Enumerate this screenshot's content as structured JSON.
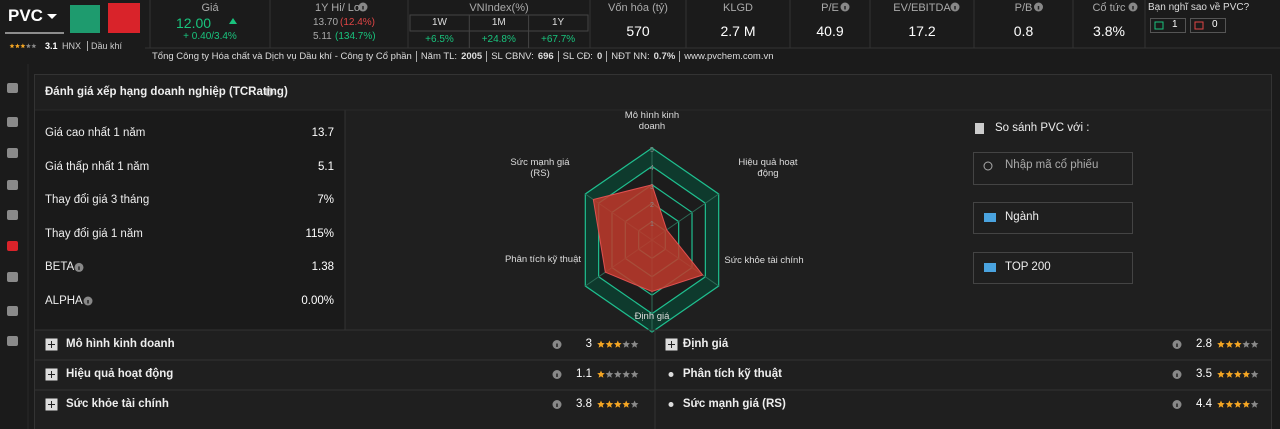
{
  "header": {
    "ticker": "PVC",
    "rating": 3.1,
    "exchange": "HNX",
    "industry": "Dầu khí",
    "price": {
      "label": "Giá",
      "value": "12.00",
      "change": "+ 0.40/3.4%"
    },
    "hilo": {
      "label": "1Y Hi/ Lo",
      "hi": "13.70",
      "hi_change": "(12.4%)",
      "lo": "5.11",
      "lo_change": "(134.7%)"
    },
    "vnindex": {
      "label": "VNIndex(%)",
      "periods": [
        "1W",
        "1M",
        "1Y"
      ],
      "values": [
        "+6.5%",
        "+24.8%",
        "+67.7%"
      ]
    },
    "metrics": [
      {
        "label": "Vốn hóa (tỷ)",
        "value": "570"
      },
      {
        "label": "KLGD",
        "value": "2.7 M"
      },
      {
        "label": "P/E",
        "value": "40.9"
      },
      {
        "label": "EV/EBITDA",
        "value": "17.2"
      },
      {
        "label": "P/B",
        "value": "0.8"
      },
      {
        "label": "Cổ tức",
        "value": "3.8%"
      }
    ],
    "sentiment": {
      "question": "Bạn nghĩ sao về PVC?",
      "up": "1",
      "down": "0"
    },
    "company": {
      "name": "Tổng Công ty Hóa chất và Dịch vụ Dầu khí - Công ty Cổ phần",
      "facts": [
        {
          "label": "Năm TL:",
          "value": "2005"
        },
        {
          "label": "SL CBNV:",
          "value": "696"
        },
        {
          "label": "SL CĐ:",
          "value": "0"
        },
        {
          "label": "NĐT NN:",
          "value": "0.7%"
        }
      ],
      "website": "www.pvchem.com.vn"
    }
  },
  "panel": {
    "title": "Đánh giá xếp hạng doanh nghiệp (TCRating)",
    "stats": [
      {
        "label": "Giá cao nhất 1 năm",
        "value": "13.7"
      },
      {
        "label": "Giá thấp nhất 1 năm",
        "value": "5.1"
      },
      {
        "label": "Thay đổi giá 3 tháng",
        "value": "7%"
      },
      {
        "label": "Thay đổi giá 1 năm",
        "value": "115%"
      },
      {
        "label": "BETA",
        "value": "1.38"
      },
      {
        "label": "ALPHA",
        "value": "0.00%"
      }
    ],
    "compare": {
      "title": "So sánh PVC với :",
      "placeholder": "Nhập mã cổ phiếu",
      "buttons": [
        "Ngành",
        "TOP 200"
      ]
    }
  },
  "chart_data": {
    "type": "radar",
    "categories": [
      "Mô hình kinh doanh",
      "Hiệu quả hoạt động",
      "Sức khỏe tài chính",
      "Định giá",
      "Phân tích kỹ thuật",
      "Sức mạnh giá (RS)"
    ],
    "values": [
      3,
      1.1,
      3.8,
      2.8,
      3.5,
      4.4
    ],
    "ylim": [
      0,
      5
    ],
    "yticks": [
      1,
      2,
      3,
      4,
      5
    ],
    "color": "#c0392b",
    "grid_color": "#1fbf8f"
  }
}
